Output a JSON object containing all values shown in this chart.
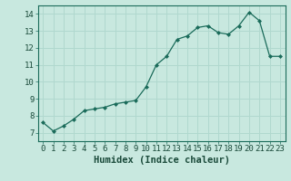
{
  "x": [
    0,
    1,
    2,
    3,
    4,
    5,
    6,
    7,
    8,
    9,
    10,
    11,
    12,
    13,
    14,
    15,
    16,
    17,
    18,
    19,
    20,
    21,
    22,
    23
  ],
  "y": [
    7.6,
    7.1,
    7.4,
    7.8,
    8.3,
    8.4,
    8.5,
    8.7,
    8.8,
    8.9,
    9.7,
    11.0,
    11.5,
    12.5,
    12.7,
    13.2,
    13.3,
    12.9,
    12.8,
    13.3,
    14.1,
    13.6,
    11.5,
    11.5
  ],
  "line_color": "#1a6b5a",
  "marker": "D",
  "markersize": 2.0,
  "linewidth": 0.9,
  "bg_color": "#c8e8df",
  "grid_color": "#b0d8ce",
  "xlabel": "Humidex (Indice chaleur)",
  "xlabel_fontsize": 7.5,
  "tick_fontsize": 6.5,
  "xlim": [
    -0.5,
    23.5
  ],
  "ylim": [
    6.5,
    14.5
  ],
  "yticks": [
    7,
    8,
    9,
    10,
    11,
    12,
    13,
    14
  ],
  "xticks": [
    0,
    1,
    2,
    3,
    4,
    5,
    6,
    7,
    8,
    9,
    10,
    11,
    12,
    13,
    14,
    15,
    16,
    17,
    18,
    19,
    20,
    21,
    22,
    23
  ]
}
